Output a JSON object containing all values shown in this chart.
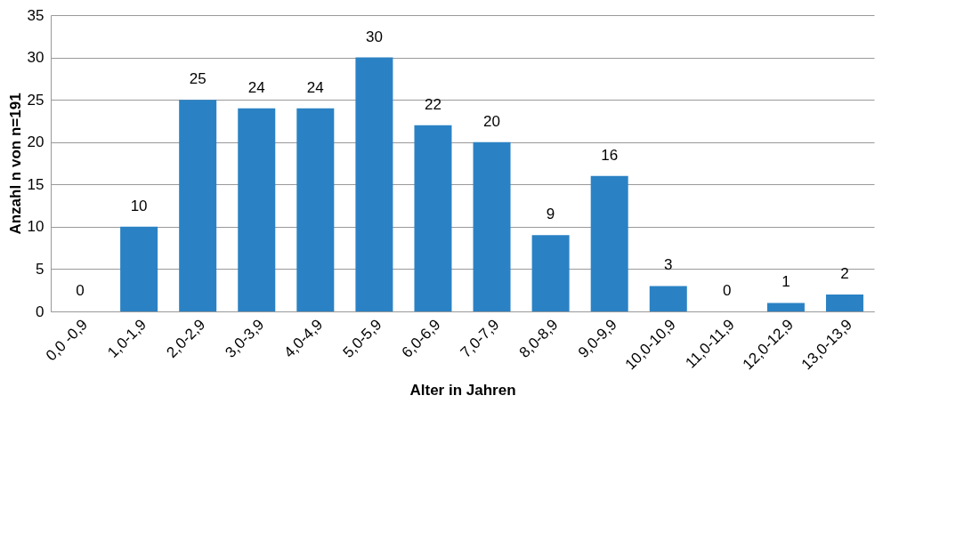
{
  "chart_data": {
    "type": "bar",
    "xlabel": "Alter in Jahren",
    "ylabel": "Anzahl n von n=191",
    "categories": [
      "0,0 -0,9",
      "1,0-1,9",
      "2,0-2,9",
      "3,0-3,9",
      "4,0-4,9",
      "5,0-5,9",
      "6,0-6,9",
      "7,0-7,9",
      "8,0-8,9",
      "9,0-9,9",
      "10,0-10,9",
      "11,0-11,9",
      "12,0-12,9",
      "13,0-13,9"
    ],
    "values": [
      0,
      10,
      25,
      24,
      24,
      30,
      22,
      20,
      9,
      16,
      3,
      0,
      1,
      2
    ],
    "color": "#2a82c4",
    "ylim": [
      0,
      35
    ],
    "yticks": [
      0,
      5,
      10,
      15,
      20,
      25,
      30,
      35
    ],
    "grid": "y",
    "data_labels": true
  }
}
